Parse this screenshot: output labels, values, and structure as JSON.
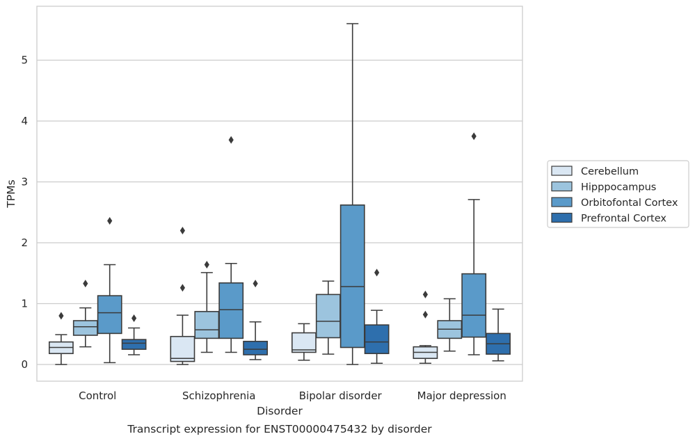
{
  "chart_data": {
    "type": "boxplot",
    "xlabel": "Disorder",
    "ylabel": "TPMs",
    "caption": "Transcript expression for ENST00000475432 by disorder",
    "ylim": [
      -0.27,
      5.88
    ],
    "yticks": [
      0,
      1,
      2,
      3,
      4,
      5
    ],
    "grid": true,
    "legend_position": "right",
    "categories": [
      "Control",
      "Schizophrenia",
      "Bipolar disorder",
      "Major depression"
    ],
    "series": [
      {
        "name": "Cerebellum",
        "color": "#dae7f3",
        "boxes": [
          {
            "whisker_low": 0.0,
            "q1": 0.18,
            "median": 0.28,
            "q3": 0.37,
            "whisker_high": 0.49,
            "outliers": [
              0.8
            ]
          },
          {
            "whisker_low": 0.0,
            "q1": 0.05,
            "median": 0.1,
            "q3": 0.46,
            "whisker_high": 0.81,
            "outliers": [
              1.26,
              2.2
            ]
          },
          {
            "whisker_low": 0.07,
            "q1": 0.2,
            "median": 0.24,
            "q3": 0.52,
            "whisker_high": 0.67,
            "outliers": []
          },
          {
            "whisker_low": 0.02,
            "q1": 0.1,
            "median": 0.2,
            "q3": 0.29,
            "whisker_high": 0.31,
            "outliers": [
              0.82,
              1.15
            ]
          }
        ]
      },
      {
        "name": "Hipppocampus",
        "color": "#9cc4de",
        "boxes": [
          {
            "whisker_low": 0.29,
            "q1": 0.48,
            "median": 0.62,
            "q3": 0.72,
            "whisker_high": 0.93,
            "outliers": [
              1.33
            ]
          },
          {
            "whisker_low": 0.2,
            "q1": 0.43,
            "median": 0.57,
            "q3": 0.87,
            "whisker_high": 1.51,
            "outliers": [
              1.64
            ]
          },
          {
            "whisker_low": 0.17,
            "q1": 0.44,
            "median": 0.71,
            "q3": 1.15,
            "whisker_high": 1.37,
            "outliers": []
          },
          {
            "whisker_low": 0.22,
            "q1": 0.43,
            "median": 0.58,
            "q3": 0.72,
            "whisker_high": 1.08,
            "outliers": []
          }
        ]
      },
      {
        "name": "Orbitofontal Cortex",
        "color": "#5a9ac9",
        "boxes": [
          {
            "whisker_low": 0.03,
            "q1": 0.51,
            "median": 0.85,
            "q3": 1.13,
            "whisker_high": 1.64,
            "outliers": [
              2.36
            ]
          },
          {
            "whisker_low": 0.2,
            "q1": 0.43,
            "median": 0.9,
            "q3": 1.34,
            "whisker_high": 1.66,
            "outliers": [
              3.69
            ]
          },
          {
            "whisker_low": 0.0,
            "q1": 0.28,
            "median": 1.28,
            "q3": 2.62,
            "whisker_high": 5.6,
            "outliers": []
          },
          {
            "whisker_low": 0.16,
            "q1": 0.45,
            "median": 0.81,
            "q3": 1.49,
            "whisker_high": 2.71,
            "outliers": [
              3.75
            ]
          }
        ]
      },
      {
        "name": "Prefrontal Cortex",
        "color": "#2e6fad",
        "boxes": [
          {
            "whisker_low": 0.16,
            "q1": 0.25,
            "median": 0.35,
            "q3": 0.41,
            "whisker_high": 0.6,
            "outliers": [
              0.76
            ]
          },
          {
            "whisker_low": 0.08,
            "q1": 0.16,
            "median": 0.25,
            "q3": 0.38,
            "whisker_high": 0.7,
            "outliers": [
              1.33
            ]
          },
          {
            "whisker_low": 0.02,
            "q1": 0.18,
            "median": 0.37,
            "q3": 0.65,
            "whisker_high": 0.89,
            "outliers": [
              1.51
            ]
          },
          {
            "whisker_low": 0.06,
            "q1": 0.17,
            "median": 0.34,
            "q3": 0.51,
            "whisker_high": 0.91,
            "outliers": []
          }
        ]
      }
    ]
  }
}
